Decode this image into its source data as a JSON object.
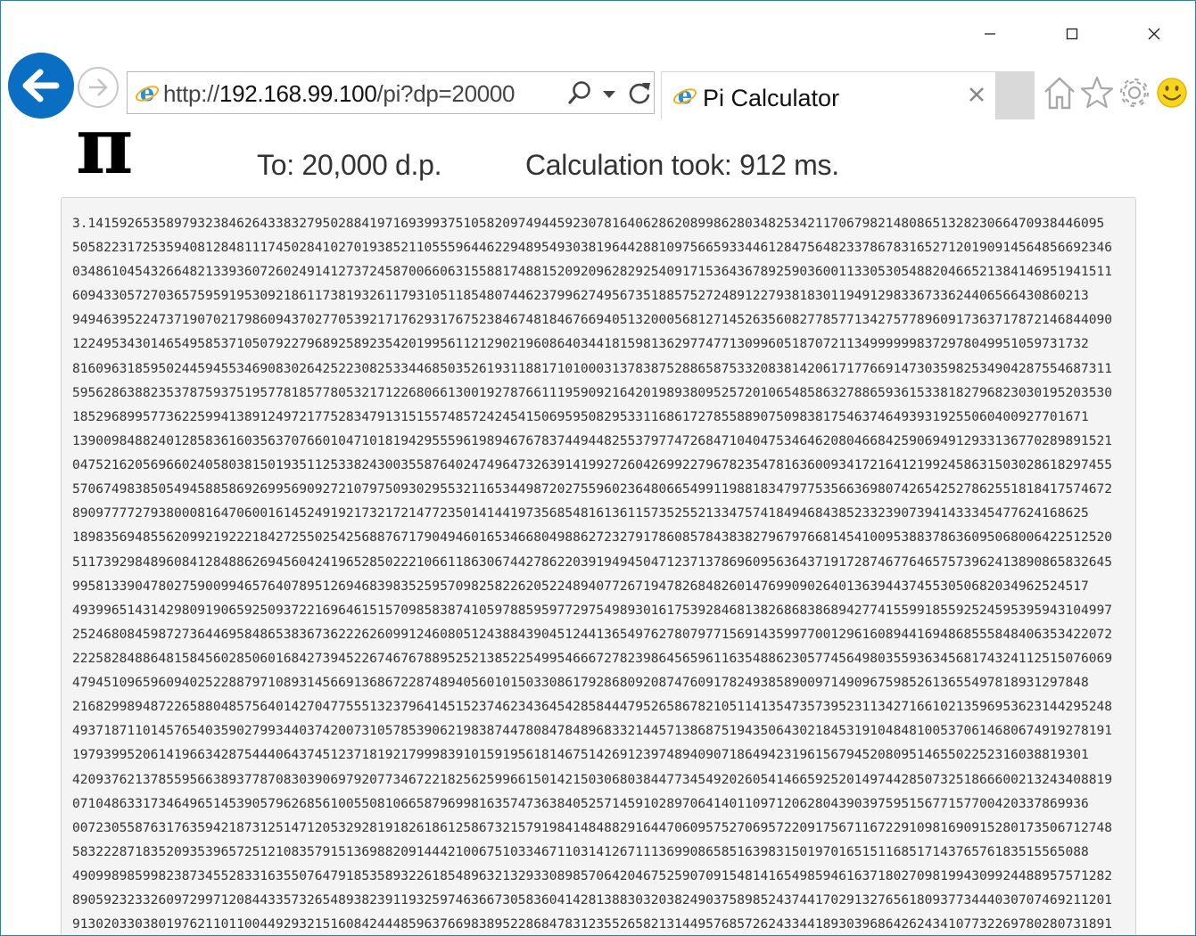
{
  "browser": {
    "address_url": "http://192.168.99.100/pi?dp=20000",
    "address_scheme_prefix": "http://",
    "address_host": "192.168.99.100",
    "address_path": "/pi?dp=20000",
    "tab_title": "Pi Calculator",
    "accent_color": "#0a6fc2",
    "icons": [
      "back-arrow-icon",
      "forward-arrow-icon",
      "ie-logo-icon",
      "search-icon",
      "dropdown-icon",
      "refresh-icon",
      "close-tab-icon",
      "home-icon",
      "favorites-star-icon",
      "settings-gear-icon",
      "feedback-smiley-icon",
      "minimize-icon",
      "maximize-icon",
      "close-icon"
    ]
  },
  "page": {
    "pi_symbol": "π",
    "precision_text": "To: 20,000 d.p.",
    "timing_text": "Calculation took: 912 ms.",
    "digit_lines": [
      "3.1415926535897932384626433832795028841971693993751058209749445923078164062862089986280348253421170679821480865132823066470938446095",
      "5058223172535940812848111745028410270193852110555964462294895493038196442881097566593344612847564823378678316527120190914564856692346",
      "0348610454326648213393607260249141273724587006606315588174881520920962829254091715364367892590360011330530548820466521384146951941511",
      "6094330572703657595919530921861173819326117931051185480744623799627495673518857527248912279381830119491298336733624406566430860213",
      "9494639522473719070217986094370277053921717629317675238467481846766940513200056812714526356082778577134275778960917363717872146844090",
      "1224953430146549585371050792279689258923542019956112129021960864034418159813629774771309960518707211349999998372978049951059731732",
      "8160963185950244594553469083026425223082533446850352619311881710100031378387528865875332083814206171776691473035982534904287554687311",
      "5956286388235378759375195778185778053217122680661300192787661119590921642019893809525720106548586327886593615338182796823030195203530",
      "1852968995773622599413891249721775283479131515574857242454150695950829533116861727855889075098381754637464939319255060400927701671",
      "1390098488240128583616035637076601047101819429555961989467678374494482553797747268471040475346462080466842590694912933136770289891521",
      "0475216205696602405803815019351125338243003558764024749647326391419927260426992279678235478163600934172164121992458631503028618297455",
      "5706749838505494588586926995690927210797509302955321165344987202755960236480665499119881834797753566369807426542527862551818417574672",
      "8909777727938000816470600161452491921732172147723501414419735685481613611573525521334757418494684385233239073941433345477624168625",
      "1898356948556209921922218427255025425688767179049460165346680498862723279178608578438382796797668145410095388378636095068006422512520",
      "5117392984896084128488626945604241965285022210661186306744278622039194945047123713786960956364371917287467764657573962413890865832645",
      "9958133904780275900994657640789512694683983525957098258226205224894077267194782684826014769909026401363944374553050682034962524517",
      "4939965143142980919065925093722169646151570985838741059788595977297549893016175392846813826868386894277415599185592524595395943104997",
      "2524680845987273644695848653836736222626099124608051243884390451244136549762780797715691435997700129616089441694868555848406353422072",
      "2225828488648158456028506016842739452267467678895252138522549954666727823986456596116354886230577456498035593634568174324112515076069",
      "4794510965960940252288797108931456691368672287489405601015033086179286809208747609178249385890097149096759852613655497818931297848",
      "2168299894872265880485756401427047755513237964145152374623436454285844479526586782105114135473573952311342716610213596953623144295248",
      "4937187110145765403590279934403742007310578539062198387447808478489683321445713868751943506430218453191048481005370614680674919278191",
      "1979399520614196634287544406437451237181921799983910159195618146751426912397489409071864942319615679452080951465502252316038819301",
      "4209376213785595663893778708303906979207734672218256259966150142150306803844773454920260541466592520149744285073251866600213243408819",
      "0710486331734649651453905796268561005508106658796998163574736384052571459102897064140110971206280439039759515677157700420337869936",
      "0072305587631763594218731251471205329281918261861258673215791984148488291644706095752706957220917567116722910981690915280173506712748",
      "5832228718352093539657251210835791513698820914442100675103346711031412671113699086585163983150197016515116851714376576183515565088",
      "4909989859982387345528331635507647918535893226185489632132933089857064204675259070915481416549859461637180270981994309924488957571282",
      "8905923233260972997120844335732654893823911932597463667305836041428138830320382490375898524374417029132765618093773444030707469211201",
      "9130203303801976211011004492932151608424448596376698389522868478312355265821314495768572624334418930396864262434107732269780280731891"
    ]
  }
}
